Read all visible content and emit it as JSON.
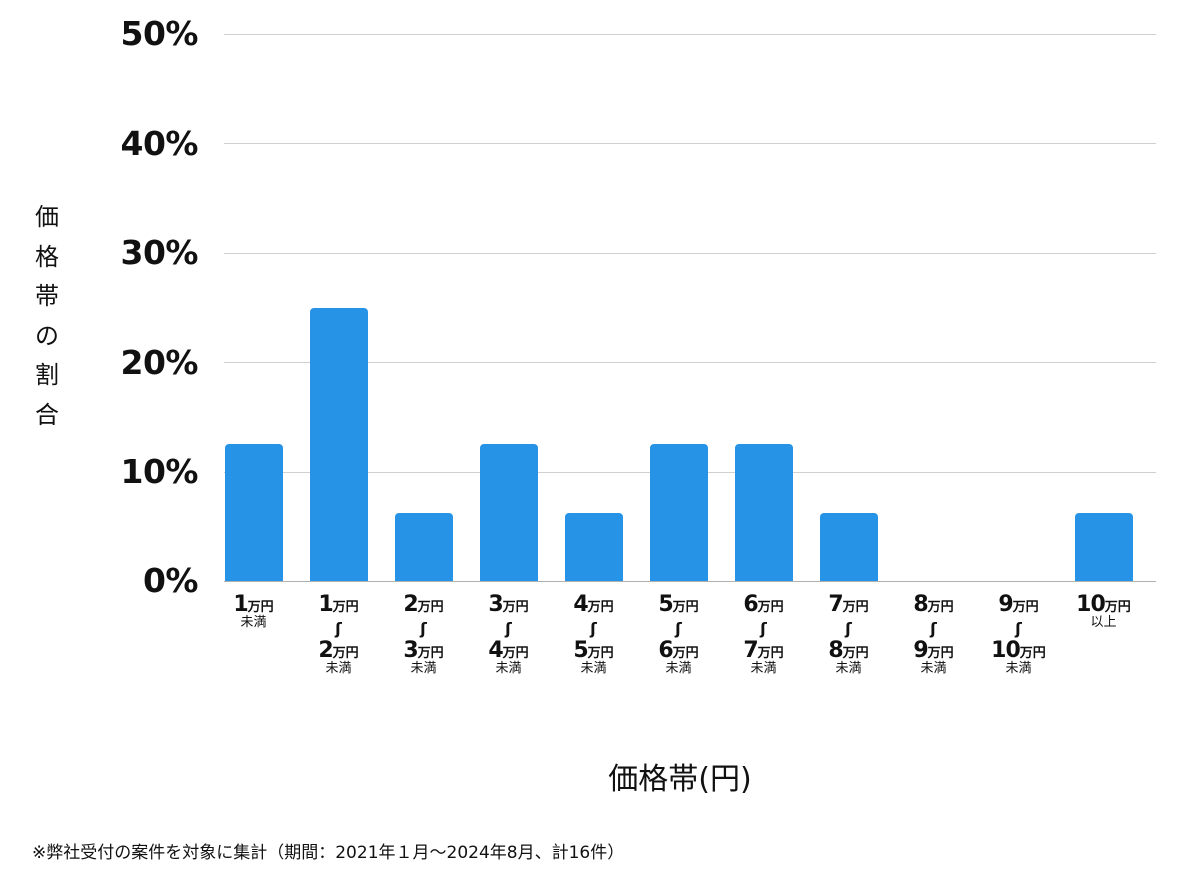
{
  "chart_data": {
    "type": "bar",
    "title": "",
    "xlabel": "価格帯(円)",
    "ylabel": "価格帯の割合",
    "ylim": [
      0,
      50
    ],
    "yticks": [
      "0%",
      "10%",
      "20%",
      "30%",
      "40%",
      "50%"
    ],
    "grid": true,
    "legend": null,
    "bar_color": "#2693e6",
    "categories": [
      "1万円未満",
      "1万円〜2万円未満",
      "2万円〜3万円未満",
      "3万円〜4万円未満",
      "4万円〜5万円未満",
      "5万円〜6万円未満",
      "6万円〜7万円未満",
      "7万円〜8万円未満",
      "8万円〜9万円未満",
      "9万円〜10万円未満",
      "10万円以上"
    ],
    "values": [
      12.5,
      25,
      6.25,
      12.5,
      6.25,
      12.5,
      12.5,
      6.25,
      0,
      0,
      6.25
    ],
    "unit": "%",
    "note": "※弊社受付の案件を対象に集計（期間：2021年１月〜2024年8月、計16件）"
  },
  "axis": {
    "yticks": [
      {
        "label": "50%",
        "value": 50
      },
      {
        "label": "40%",
        "value": 40
      },
      {
        "label": "30%",
        "value": 30
      },
      {
        "label": "20%",
        "value": 20
      },
      {
        "label": "10%",
        "value": 10
      },
      {
        "label": "0%",
        "value": 0
      }
    ],
    "ylabel_chars": [
      "価",
      "格",
      "帯",
      "の",
      "割",
      "合"
    ],
    "xtitle": "価格帯(円)"
  },
  "xlabels": [
    {
      "from_num": "1",
      "from_unit": "万円",
      "tilde": "",
      "to_num": "",
      "to_unit": "",
      "suffix": "未満"
    },
    {
      "from_num": "1",
      "from_unit": "万円",
      "tilde": "〜",
      "to_num": "2",
      "to_unit": "万円",
      "suffix": "未満"
    },
    {
      "from_num": "2",
      "from_unit": "万円",
      "tilde": "〜",
      "to_num": "3",
      "to_unit": "万円",
      "suffix": "未満"
    },
    {
      "from_num": "3",
      "from_unit": "万円",
      "tilde": "〜",
      "to_num": "4",
      "to_unit": "万円",
      "suffix": "未満"
    },
    {
      "from_num": "4",
      "from_unit": "万円",
      "tilde": "〜",
      "to_num": "5",
      "to_unit": "万円",
      "suffix": "未満"
    },
    {
      "from_num": "5",
      "from_unit": "万円",
      "tilde": "〜",
      "to_num": "6",
      "to_unit": "万円",
      "suffix": "未満"
    },
    {
      "from_num": "6",
      "from_unit": "万円",
      "tilde": "〜",
      "to_num": "7",
      "to_unit": "万円",
      "suffix": "未満"
    },
    {
      "from_num": "7",
      "from_unit": "万円",
      "tilde": "〜",
      "to_num": "8",
      "to_unit": "万円",
      "suffix": "未満"
    },
    {
      "from_num": "8",
      "from_unit": "万円",
      "tilde": "〜",
      "to_num": "9",
      "to_unit": "万円",
      "suffix": "未満"
    },
    {
      "from_num": "9",
      "from_unit": "万円",
      "tilde": "〜",
      "to_num": "10",
      "to_unit": "万円",
      "suffix": "未満"
    },
    {
      "from_num": "10",
      "from_unit": "万円",
      "tilde": "",
      "to_num": "",
      "to_unit": "",
      "suffix": "以上"
    }
  ],
  "footer": {
    "note": "※弊社受付の案件を対象に集計（期間：2021年１月〜2024年8月、計16件）"
  }
}
